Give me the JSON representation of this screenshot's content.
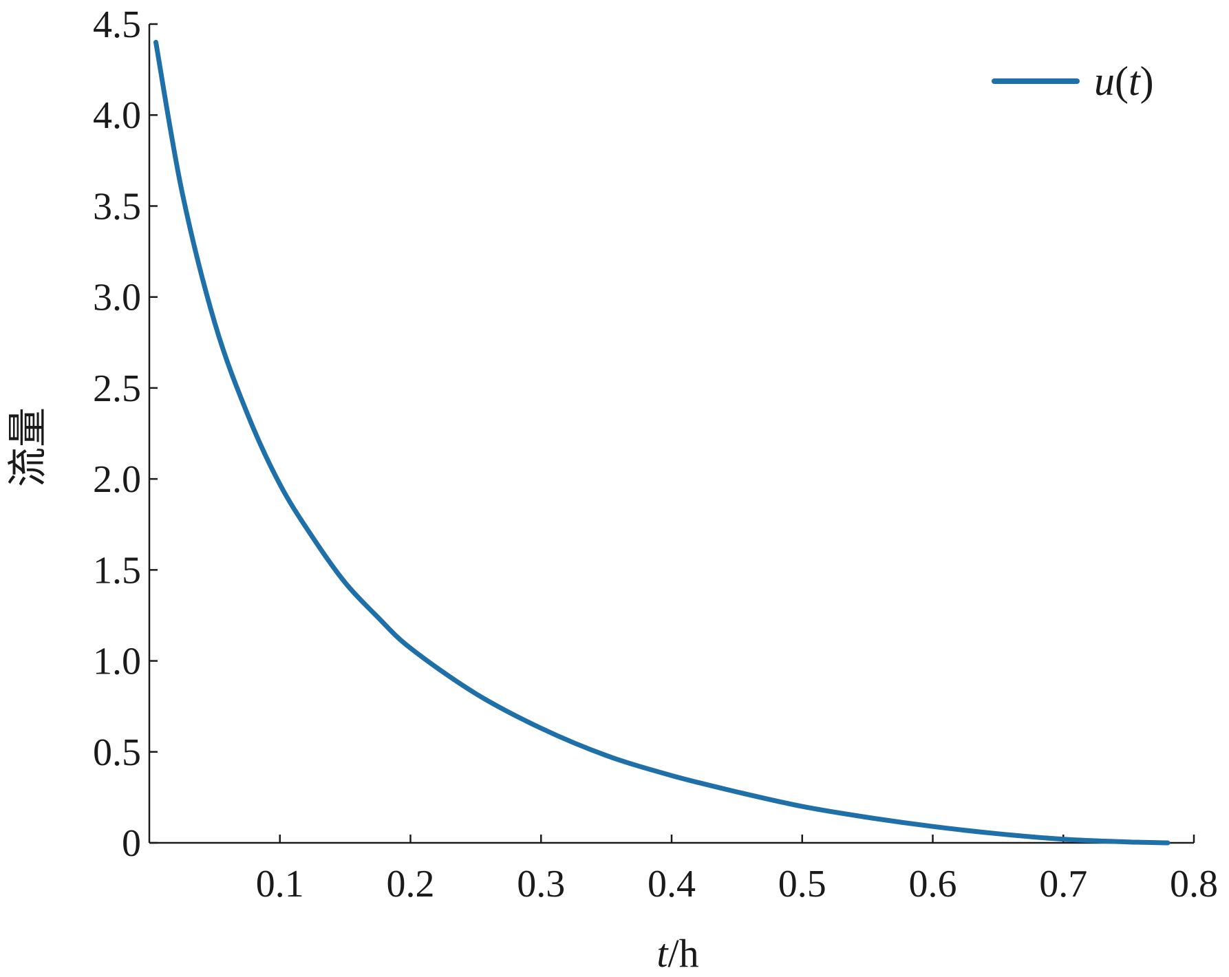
{
  "chart_data": {
    "type": "line",
    "title": "",
    "xlabel": {
      "var": "t",
      "unit": "/h"
    },
    "ylabel": "流量",
    "xlim": [
      0.0,
      0.8
    ],
    "ylim": [
      0,
      4.5
    ],
    "xticks": [
      0.1,
      0.2,
      0.3,
      0.4,
      0.5,
      0.6,
      0.7,
      0.8
    ],
    "xtick_labels": [
      "0.1",
      "0.2",
      "0.3",
      "0.4",
      "0.5",
      "0.6",
      "0.7",
      "0.8"
    ],
    "yticks": [
      0,
      0.5,
      1.0,
      1.5,
      2.0,
      2.5,
      3.0,
      3.5,
      4.0,
      4.5
    ],
    "ytick_labels": [
      "0",
      "0.5",
      "1.0",
      "1.5",
      "2.0",
      "2.5",
      "3.0",
      "3.5",
      "4.0",
      "4.5"
    ],
    "grid": false,
    "legend": {
      "position": "top-right",
      "label_var": "u",
      "label_arg": "t"
    },
    "series": [
      {
        "name": "u(t)",
        "color": "#1f6fa8",
        "x": [
          0.005,
          0.025,
          0.05,
          0.075,
          0.1,
          0.125,
          0.15,
          0.175,
          0.2,
          0.25,
          0.3,
          0.35,
          0.4,
          0.45,
          0.5,
          0.55,
          0.6,
          0.65,
          0.7,
          0.75,
          0.78
        ],
        "y": [
          4.4,
          3.58,
          2.86,
          2.36,
          1.97,
          1.68,
          1.43,
          1.24,
          1.07,
          0.82,
          0.63,
          0.48,
          0.37,
          0.28,
          0.2,
          0.14,
          0.09,
          0.05,
          0.02,
          0.005,
          0.0
        ]
      }
    ]
  }
}
